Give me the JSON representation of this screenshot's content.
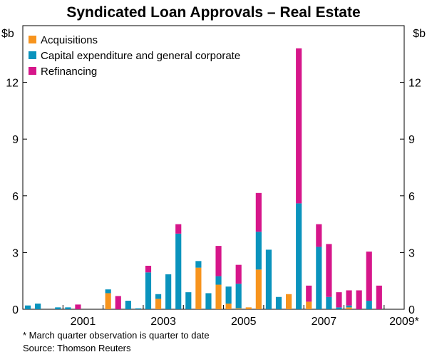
{
  "chart_data": {
    "type": "bar",
    "stacked": true,
    "title": "Syndicated Loan Approvals – Real Estate",
    "ylabel_left": "$b",
    "ylabel_right": "$b",
    "ylim": [
      0,
      15
    ],
    "yticks": [
      0,
      3,
      6,
      9,
      12
    ],
    "ytick_labels": [
      "0",
      "3",
      "6",
      "9",
      "12"
    ],
    "xlim": [
      2000.0,
      2009.5
    ],
    "xticks": [
      2001,
      2003,
      2005,
      2007,
      2009
    ],
    "xtick_labels": [
      "2001",
      "2003",
      "2005",
      "2007",
      "2009*"
    ],
    "legend_position": "top-left",
    "grid": false,
    "colors": {
      "Acquisitions": "#f7941d",
      "Capital expenditure and general corporate": "#0a93bd",
      "Refinancing": "#d6168a"
    },
    "quarters": [
      "2000Q1",
      "2000Q2",
      "2000Q3",
      "2000Q4",
      "2001Q1",
      "2001Q2",
      "2001Q3",
      "2001Q4",
      "2002Q1",
      "2002Q2",
      "2002Q3",
      "2002Q4",
      "2003Q1",
      "2003Q2",
      "2003Q3",
      "2003Q4",
      "2004Q1",
      "2004Q2",
      "2004Q3",
      "2004Q4",
      "2005Q1",
      "2005Q2",
      "2005Q3",
      "2005Q4",
      "2006Q1",
      "2006Q2",
      "2006Q3",
      "2006Q4",
      "2007Q1",
      "2007Q2",
      "2007Q3",
      "2007Q4",
      "2008Q1",
      "2008Q2",
      "2008Q3",
      "2008Q4",
      "2009Q1"
    ],
    "series": [
      {
        "name": "Acquisitions",
        "values": [
          0,
          0,
          0,
          0,
          0,
          0,
          0,
          0,
          0.85,
          0,
          0,
          0,
          0,
          0.55,
          0,
          0,
          0,
          2.2,
          0,
          1.3,
          0.3,
          0.05,
          0.1,
          2.1,
          0,
          0,
          0.8,
          0,
          0.4,
          0,
          0,
          0,
          0.1,
          0,
          0,
          0,
          0
        ]
      },
      {
        "name": "Capital expenditure and general corporate",
        "values": [
          0.2,
          0.3,
          0,
          0.1,
          0.1,
          0,
          0,
          0,
          0.2,
          0,
          0.45,
          0.05,
          1.95,
          0.25,
          1.85,
          4.0,
          0.9,
          0.35,
          0.85,
          0.45,
          0.9,
          1.3,
          0,
          2.0,
          3.15,
          0.65,
          0,
          5.6,
          0,
          3.3,
          0.65,
          0.1,
          0.1,
          0,
          0.45,
          0,
          0
        ]
      },
      {
        "name": "Refinancing",
        "values": [
          0,
          0,
          0,
          0,
          0,
          0.25,
          0,
          0,
          0,
          0.7,
          0,
          0,
          0.35,
          0,
          0,
          0.5,
          0,
          0,
          0,
          1.6,
          0,
          1.0,
          0,
          2.05,
          0,
          0,
          0,
          8.2,
          0.85,
          1.2,
          2.8,
          0.8,
          0.8,
          1.0,
          2.6,
          1.25,
          0
        ]
      }
    ],
    "notes": [
      "* March quarter observation is quarter to date",
      "Source: Thomson Reuters"
    ]
  }
}
